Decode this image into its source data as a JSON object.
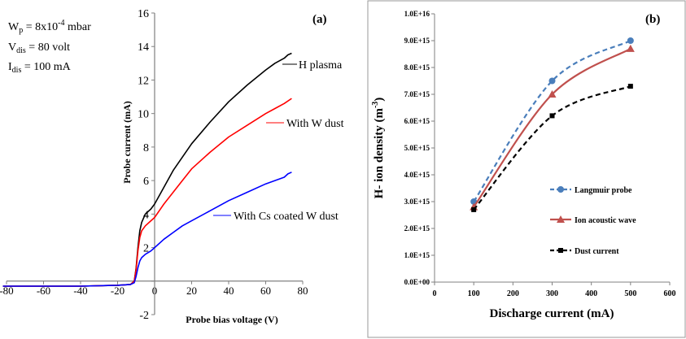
{
  "panel_a": {
    "tag": "(a)",
    "params": {
      "wp_label": "W",
      "wp_sub": "p",
      "wp_value": " =  8x10",
      "wp_exp": "-4",
      "wp_unit": " mbar",
      "vdis_label": "V",
      "vdis_sub": "dis",
      "vdis_value": " = 80 volt",
      "idis_label": "I",
      "idis_sub": "dis",
      "idis_value": " = 100 mA"
    }
  },
  "panel_b": {
    "tag": "(b)",
    "ylabel_main": "H- ion density (m",
    "ylabel_exp": "-3",
    "ylabel_close": ")"
  },
  "chart_data": [
    {
      "type": "line",
      "title": "",
      "xlabel": "Probe bias voltage (V)",
      "ylabel": "Probe current (mA)",
      "xlim": [
        -80,
        80
      ],
      "ylim": [
        -2,
        16
      ],
      "xticks": [
        -80,
        -60,
        -40,
        -20,
        0,
        20,
        40,
        60,
        80
      ],
      "yticks": [
        -2,
        0,
        2,
        4,
        6,
        8,
        10,
        12,
        14,
        16
      ],
      "xtick_labels": [
        "-80",
        "-60",
        "-40",
        "-20",
        "0",
        "20",
        "40",
        "60",
        "80"
      ],
      "ytick_labels": [
        "-2",
        "0",
        "2",
        "4",
        "6",
        "8",
        "10",
        "12",
        "14",
        "16"
      ],
      "grid": false,
      "legend": "callout labels",
      "series": [
        {
          "name": "H plasma",
          "color": "#000000",
          "x": [
            -82,
            -60,
            -40,
            -20,
            -13,
            -11,
            -10,
            -9,
            -8,
            -7,
            -5,
            -2,
            0,
            5,
            10,
            15,
            20,
            30,
            40,
            50,
            60,
            65,
            70,
            72,
            74
          ],
          "y": [
            -0.3,
            -0.3,
            -0.3,
            -0.25,
            -0.2,
            0.0,
            0.8,
            2.0,
            3.0,
            3.5,
            4.0,
            4.3,
            4.6,
            5.6,
            6.6,
            7.4,
            8.2,
            9.5,
            10.7,
            11.7,
            12.6,
            13.0,
            13.3,
            13.5,
            13.6
          ]
        },
        {
          "name": "With W dust",
          "color": "#ff0000",
          "x": [
            -82,
            -60,
            -40,
            -20,
            -13,
            -11,
            -10,
            -9,
            -8,
            -7,
            -5,
            -2,
            0,
            5,
            10,
            15,
            20,
            30,
            40,
            50,
            60,
            65,
            70,
            74
          ],
          "y": [
            -0.3,
            -0.3,
            -0.3,
            -0.25,
            -0.2,
            0.0,
            0.7,
            1.8,
            2.6,
            3.0,
            3.3,
            3.6,
            3.8,
            4.6,
            5.3,
            6.0,
            6.7,
            7.7,
            8.6,
            9.3,
            10.0,
            10.3,
            10.6,
            10.9
          ]
        },
        {
          "name": "With Cs coated W dust",
          "color": "#0000ff",
          "x": [
            -82,
            -60,
            -40,
            -20,
            -13,
            -11,
            -10,
            -9,
            -8,
            -7,
            -5,
            -2,
            0,
            5,
            10,
            15,
            20,
            30,
            40,
            50,
            60,
            65,
            70,
            72,
            74
          ],
          "y": [
            -0.3,
            -0.3,
            -0.3,
            -0.25,
            -0.2,
            -0.1,
            0.3,
            0.8,
            1.2,
            1.4,
            1.6,
            1.8,
            2.0,
            2.5,
            2.9,
            3.3,
            3.6,
            4.2,
            4.8,
            5.3,
            5.8,
            6.0,
            6.2,
            6.4,
            6.5
          ]
        }
      ]
    },
    {
      "type": "line",
      "title": "",
      "xlabel": "Discharge current (mA)",
      "ylabel": "H- ion density (m-3)",
      "xlim": [
        0,
        600
      ],
      "ylim": [
        0,
        1e+16
      ],
      "xticks": [
        0,
        100,
        200,
        300,
        400,
        500,
        600
      ],
      "xtick_labels": [
        "0",
        "100",
        "200",
        "300",
        "400",
        "500",
        "600"
      ],
      "yticks": [
        0,
        1000000000000000.0,
        2000000000000000.0,
        3000000000000000.0,
        4000000000000000.0,
        5000000000000000.0,
        6000000000000000.0,
        7000000000000000.0,
        8000000000000000.0,
        9000000000000000.0,
        1e+16
      ],
      "ytick_labels": [
        "0.0E+00",
        "1.0E+15",
        "2.0E+15",
        "3.0E+15",
        "4.0E+15",
        "5.0E+15",
        "6.0E+15",
        "7.0E+15",
        "8.0E+15",
        "9.0E+15",
        "1.0E+16"
      ],
      "grid": false,
      "legend": "right",
      "series": [
        {
          "name": "Langmuir probe",
          "color": "#4a7ebb",
          "marker": "circle",
          "dash": "dashed",
          "x": [
            100,
            300,
            500
          ],
          "y": [
            3000000000000000.0,
            7500000000000000.0,
            9000000000000000.0
          ]
        },
        {
          "name": "Ion acoustic wave",
          "color": "#c0504d",
          "marker": "triangle",
          "dash": "solid",
          "x": [
            100,
            300,
            500
          ],
          "y": [
            2800000000000000.0,
            7000000000000000.0,
            8700000000000000.0
          ]
        },
        {
          "name": "Dust current",
          "color": "#000000",
          "marker": "square",
          "dash": "dashed",
          "x": [
            100,
            300,
            500
          ],
          "y": [
            2700000000000000.0,
            6200000000000000.0,
            7300000000000000.0
          ]
        }
      ]
    }
  ]
}
